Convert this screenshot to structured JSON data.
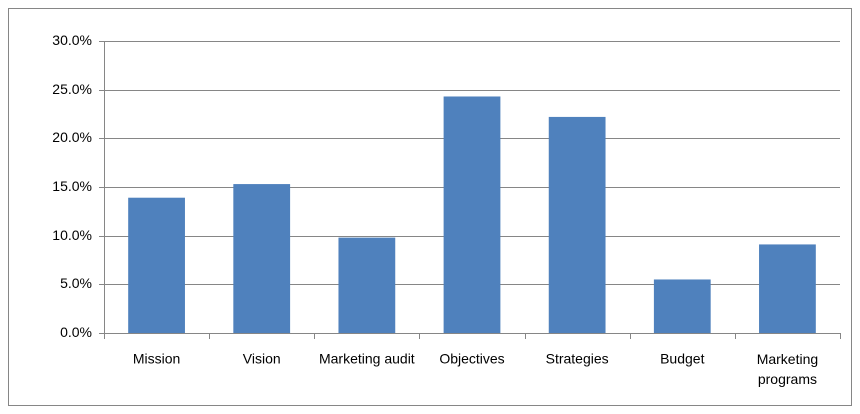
{
  "chart_data": {
    "type": "bar",
    "categories": [
      "Mission",
      "Vision",
      "Marketing audit",
      "Objectives",
      "Strategies",
      "Budget",
      "Marketing programs"
    ],
    "values": [
      13.9,
      15.3,
      9.8,
      24.3,
      22.2,
      5.5,
      9.1
    ],
    "color": "#4f81bd",
    "ylim": [
      0,
      30
    ],
    "yticks": [
      {
        "value": 0,
        "label": "0.0%"
      },
      {
        "value": 5,
        "label": "5.0%"
      },
      {
        "value": 10,
        "label": "10.0%"
      },
      {
        "value": 15,
        "label": "15.0%"
      },
      {
        "value": 20,
        "label": "20.0%"
      },
      {
        "value": 25,
        "label": "25.0%"
      },
      {
        "value": 30,
        "label": "30.0%"
      }
    ],
    "grid": true
  }
}
